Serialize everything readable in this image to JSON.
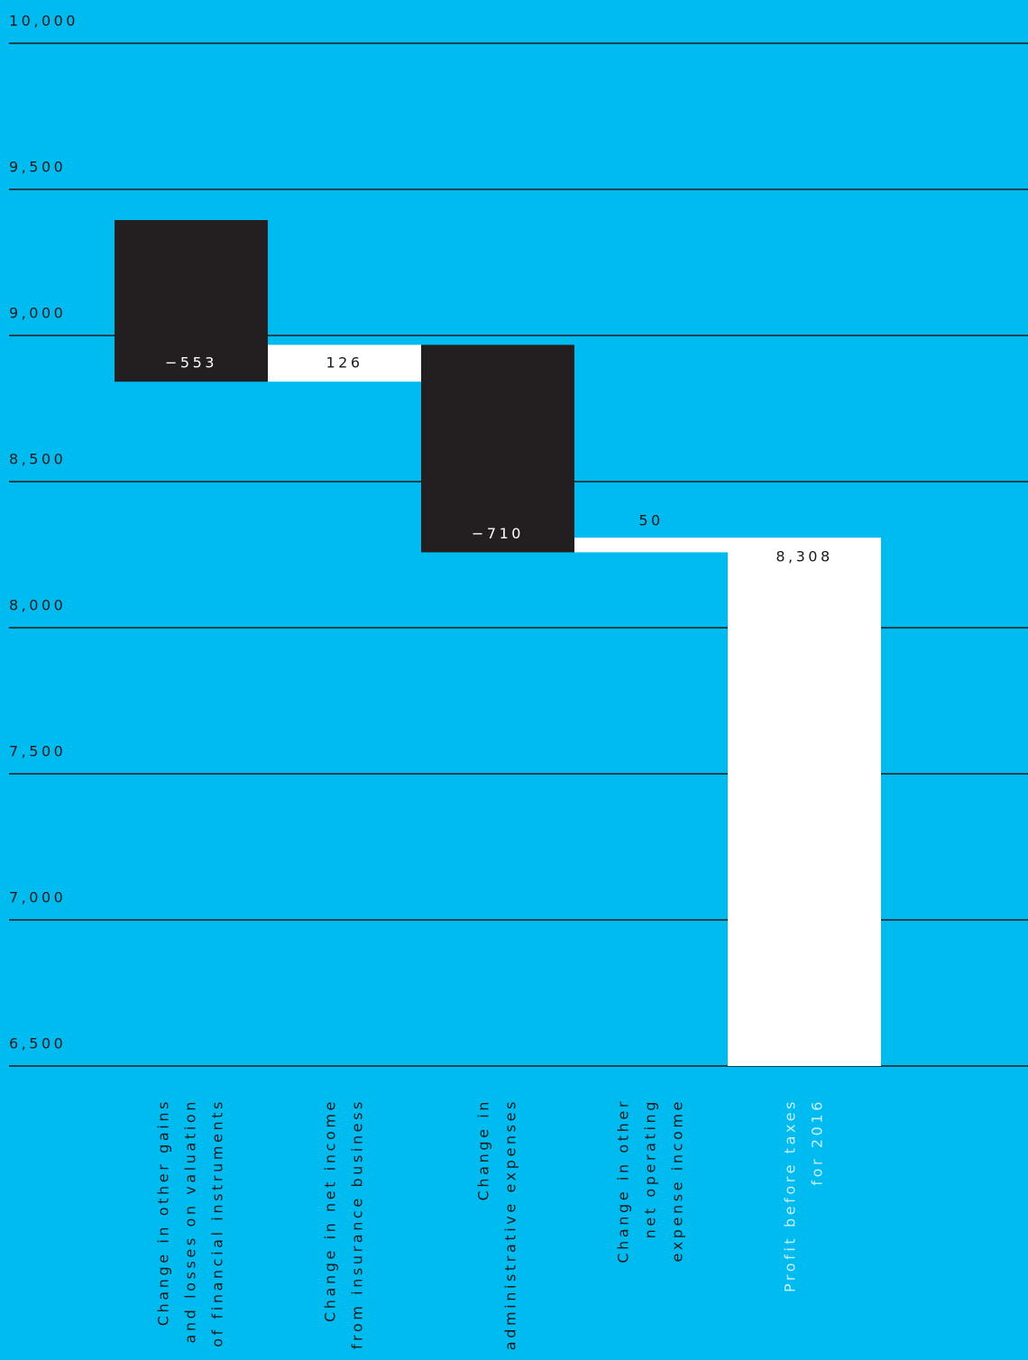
{
  "chart_data": {
    "type": "waterfall",
    "categories": [
      [
        "Change in other gains",
        "and losses on valuation",
        "of financial instruments"
      ],
      [
        "Change in net income",
        "from insurance business"
      ],
      [
        "Change in",
        "administrative expenses"
      ],
      [
        "Change in other",
        "net operating",
        "expense income"
      ],
      [
        "Profit before taxes",
        "for 2016"
      ]
    ],
    "values": [
      -553,
      126,
      -710,
      50,
      8308
    ],
    "value_labels": [
      "−553",
      "126",
      "−710",
      "50",
      "8,308"
    ],
    "total_last": true,
    "negative_color": "#231f20",
    "positive_color": "#ffffff",
    "background": "#00bbf0",
    "ylim": [
      6500,
      10000
    ],
    "yticks": [
      {
        "value": 6500,
        "label": "6,500"
      },
      {
        "value": 7000,
        "label": "7,000"
      },
      {
        "value": 7500,
        "label": "7,500"
      },
      {
        "value": 8000,
        "label": "8,000"
      },
      {
        "value": 8500,
        "label": "8,500"
      },
      {
        "value": 9000,
        "label": "9,000"
      },
      {
        "value": 9500,
        "label": "9,500"
      },
      {
        "value": 10000,
        "label": "10,000"
      }
    ],
    "grid": true
  }
}
